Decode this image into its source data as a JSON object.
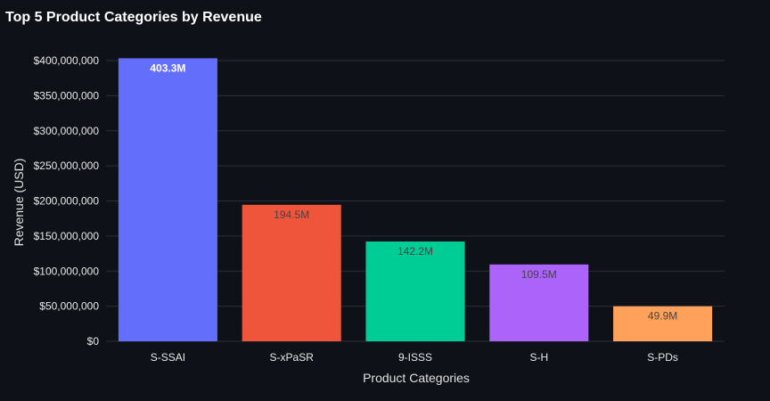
{
  "chart_data": {
    "type": "bar",
    "title": "Top 5 Product Categories by Revenue",
    "xlabel": "Product Categories",
    "ylabel": "Revenue (USD)",
    "categories": [
      "S-SSAI",
      "S-xPaSR",
      "9-ISSS",
      "S-H",
      "S-PDs"
    ],
    "values": [
      403300000,
      194500000,
      142200000,
      109500000,
      49900000
    ],
    "data_labels": [
      "403.3M",
      "194.5M",
      "142.2M",
      "109.5M",
      "49.9M"
    ],
    "bar_colors": [
      "#636efa",
      "#ef553b",
      "#00cc96",
      "#ab63fa",
      "#ffa15a"
    ],
    "label_colors": [
      "#ffffff",
      "#444444",
      "#444444",
      "#444444",
      "#444444"
    ],
    "ylim": [
      0,
      400000000
    ],
    "yticks": [
      0,
      50000000,
      100000000,
      150000000,
      200000000,
      250000000,
      300000000,
      350000000,
      400000000
    ],
    "ytick_labels": [
      "$0",
      "$50,000,000",
      "$100,000,000",
      "$150,000,000",
      "$200,000,000",
      "$250,000,000",
      "$300,000,000",
      "$350,000,000",
      "$400,000,000"
    ],
    "grid": true,
    "legend": "none"
  }
}
